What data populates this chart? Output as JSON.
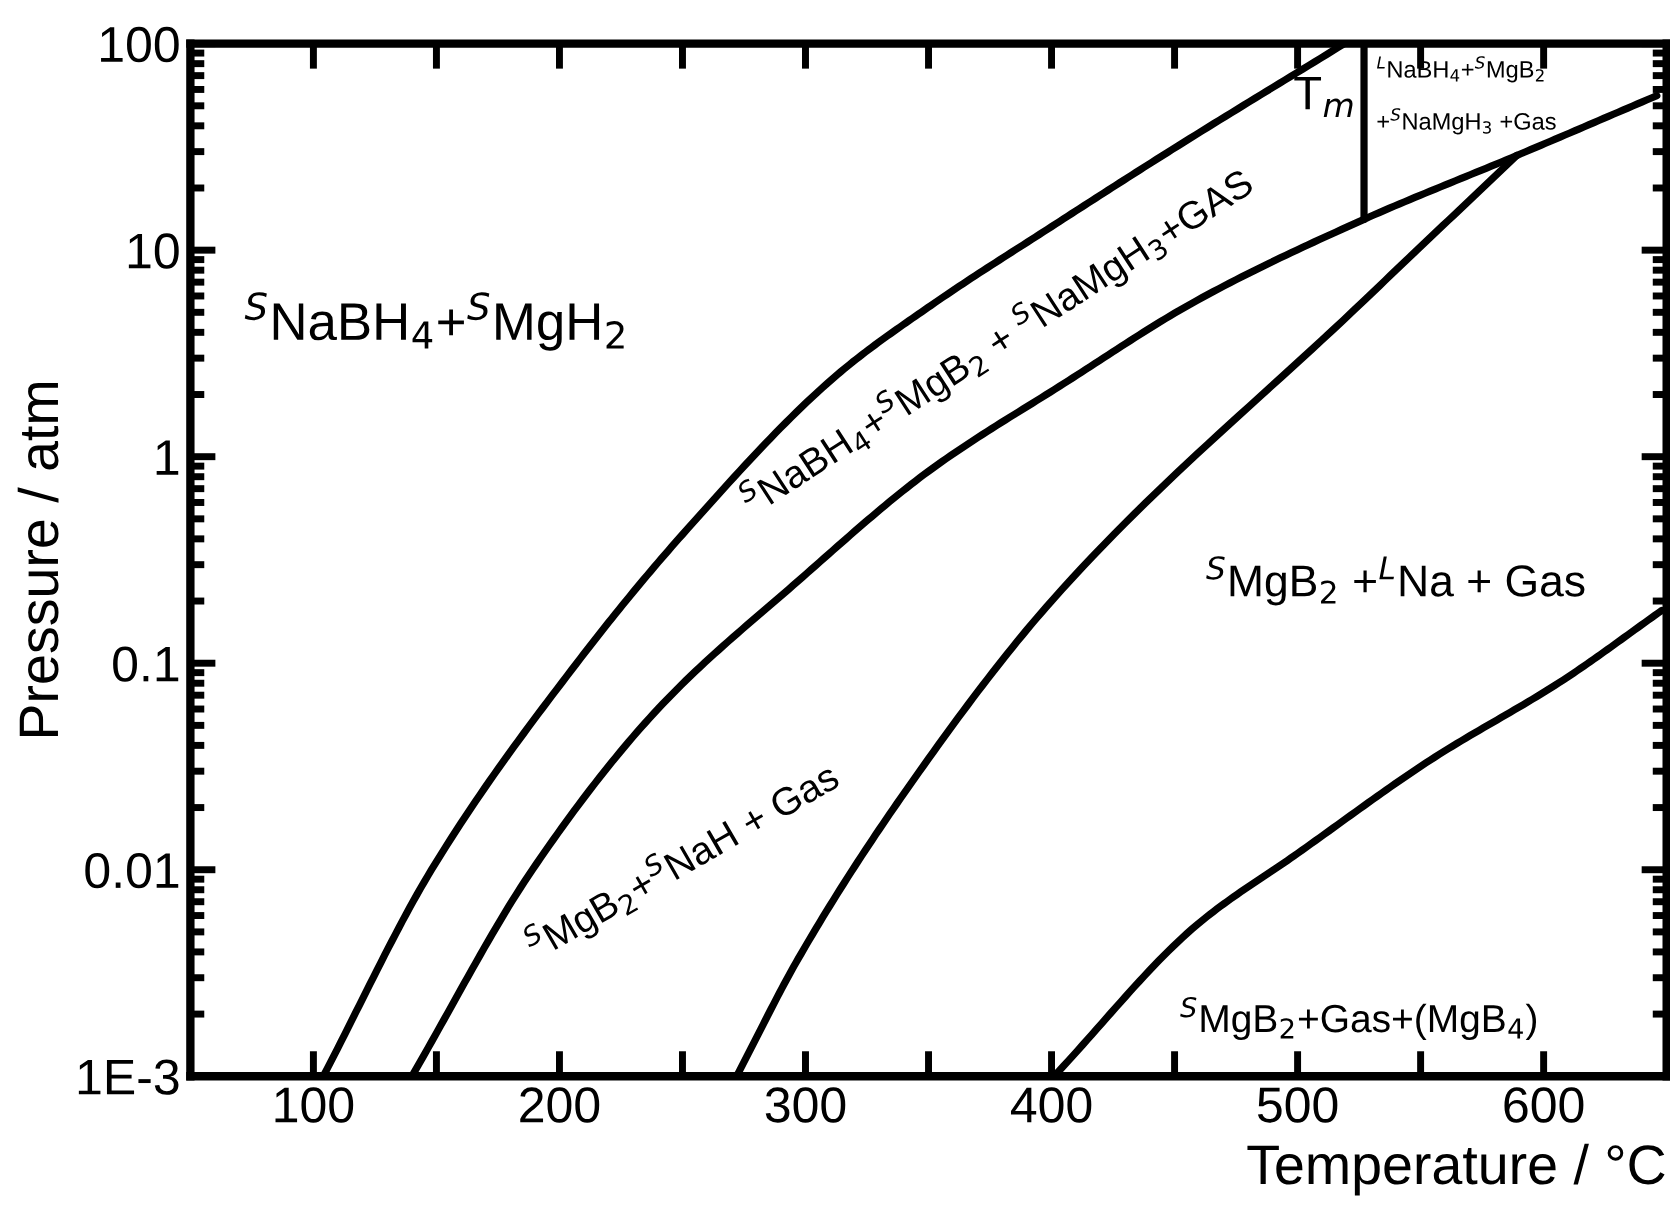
{
  "chart_data": {
    "type": "line",
    "xlabel": "Temperature / °C",
    "ylabel": "Pressure / atm",
    "log": "y",
    "grid": false,
    "legend": false,
    "line_style": "solid",
    "xlim": [
      50,
      650
    ],
    "ylim": [
      0.001,
      100
    ],
    "xticks": [
      100,
      {
        "value": 150,
        "label": null
      },
      200,
      {
        "value": 250,
        "label": null
      },
      300,
      {
        "value": 350,
        "label": null
      },
      400,
      {
        "value": 450,
        "label": null
      },
      500,
      {
        "value": 550,
        "label": null
      },
      600
    ],
    "yticks": [
      {
        "value": 0.001,
        "label": "1E-3"
      },
      0.01,
      0.1,
      1,
      10,
      100
    ],
    "series": [
      {
        "color": "#000000",
        "x": [
          104,
          148,
          207,
          250,
          313,
          351,
          400,
          449,
          519
        ],
        "values": [
          0.001,
          0.01,
          0.1,
          0.42,
          2.5,
          5.4,
          13,
          30.7,
          100
        ]
      },
      {
        "color": "#000000",
        "x": [
          140,
          189,
          240,
          297,
          350,
          405,
          459,
          527,
          589,
          646
        ],
        "values": [
          0.001,
          0.01,
          0.06,
          0.25,
          0.85,
          2.26,
          5.7,
          14.1,
          28.7,
          56
        ]
      },
      {
        "color": "#000000",
        "x": [
          272,
          297,
          340,
          400,
          527,
          589
        ],
        "values": [
          0.001,
          0.0037,
          0.0234,
          0.2,
          5.7,
          28.7
        ]
      },
      {
        "color": "#000000",
        "x": [
          401,
          459,
          500,
          554,
          608,
          648
        ],
        "values": [
          0.001,
          0.0054,
          0.012,
          0.034,
          0.083,
          0.18
        ]
      },
      {
        "color": "#000000",
        "x": [
          527,
          527
        ],
        "values": [
          14.1,
          100
        ]
      }
    ],
    "annotations": [
      "$^{S}$NaBH$_{4}$+$^{S}$MgH$_{2}$",
      "$^{S}$NaBH$_{4}$+$^{S}$MgB$_{2}$ + $^{S}$NaMgH$_{3}$+GAS",
      "$^{S}$MgB$_{2}$+$^{S}$NaH + Gas",
      "$^{S}$MgB$_{2}$ +$^{L}$Na + Gas",
      "$^{S}$MgB$_{2}$+Gas+(MgB$_{4}$)",
      "T$_{m}$",
      "$^{L}$NaBH$_{4}$+$^{S}$MgB$_{2}$",
      "+$^{S}$NaMgH$_{3}$ +Gas"
    ]
  }
}
